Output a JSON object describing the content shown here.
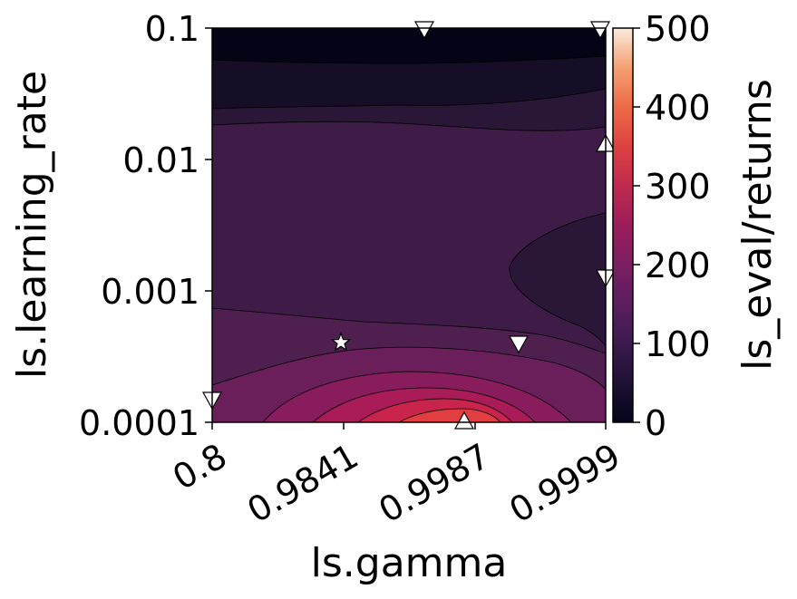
{
  "chart_data": {
    "type": "contour",
    "xlabel": "ls.gamma",
    "ylabel": "ls.learning_rate",
    "colorbar_label": "ls_eval/returns",
    "x_ticks": [
      "0.8",
      "0.9841",
      "0.9987",
      "0.9999"
    ],
    "y_ticks": [
      "0.1",
      "0.01",
      "0.001",
      "0.0001"
    ],
    "y_scale": "log",
    "ylim": [
      0.0001,
      0.1
    ],
    "colorbar_ticks": [
      "0",
      "100",
      "200",
      "300",
      "400",
      "500"
    ],
    "colorbar_range": [
      0,
      500
    ],
    "colormap": "rocket",
    "colors": {
      "c0": "#050416",
      "c1": "#150e26",
      "c2": "#2a1636",
      "c3": "#3e1c47",
      "c4": "#4f1f4f",
      "c5": "#6a1e5a",
      "c6": "#891c5c",
      "c7": "#a91c58",
      "c8": "#c9244c",
      "c9": "#e03e41"
    },
    "markers": [
      {
        "shape": "star",
        "x": "0.9841",
        "y": 0.0004
      },
      {
        "shape": "triangle-down",
        "x": "between 0.9987 and 0.9999",
        "y": 0.0004
      },
      {
        "shape": "triangle-down",
        "x": "between 0.9841 and 0.9987",
        "y": 0.1
      },
      {
        "shape": "triangle-down",
        "x": "0.9999",
        "y": 0.1
      },
      {
        "shape": "triangle-up",
        "x": "0.9999",
        "y": 0.012
      },
      {
        "shape": "triangle-down",
        "x": "0.9999",
        "y": 0.0012
      },
      {
        "shape": "triangle-up",
        "x": "between 0.9841 and 0.9987",
        "y": 0.0001
      },
      {
        "shape": "triangle-down",
        "x": "0.8",
        "y": 0.00015
      }
    ]
  }
}
